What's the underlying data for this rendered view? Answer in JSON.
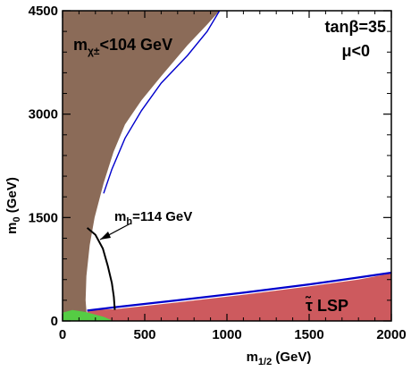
{
  "chart_data": {
    "type": "area",
    "title": "",
    "xlabel": "m1/2 (GeV)",
    "ylabel": "m0 (GeV)",
    "xlim": [
      0,
      2000
    ],
    "ylim": [
      0,
      4500
    ],
    "xticks": [
      0,
      500,
      1000,
      1500,
      2000
    ],
    "yticks": [
      0,
      1500,
      3000,
      4500
    ],
    "grid": false,
    "annotations": {
      "chargino": "m",
      "chargino_sub": "χ±",
      "chargino_tail": "<104 GeV",
      "tanbeta": "tanβ=35",
      "mu": "μ<0",
      "higgs_main": "m",
      "higgs_sub": "h",
      "higgs_tail": "=114 GeV",
      "lsp": "τ̃ LSP"
    },
    "colors": {
      "chargino_region": "#8b6b58",
      "stau_lsp_region": "#cd5a5e",
      "relic_density": "#0000cc",
      "green_region": "#55cc44",
      "higgs_contour": "#000000"
    },
    "regions": [
      {
        "name": "mchi+-<104 GeV excluded",
        "points": [
          [
            0,
            0
          ],
          [
            0,
            4500
          ],
          [
            955,
            4500
          ],
          [
            880,
            4300
          ],
          [
            760,
            4000
          ],
          [
            600,
            3550
          ],
          [
            480,
            3200
          ],
          [
            380,
            2850
          ],
          [
            310,
            2450
          ],
          [
            250,
            2000
          ],
          [
            195,
            1500
          ],
          [
            165,
            1100
          ],
          [
            145,
            650
          ],
          [
            140,
            300
          ],
          [
            150,
            0
          ]
        ]
      },
      {
        "name": "stau LSP",
        "points": [
          [
            150,
            0
          ],
          [
            150,
            160
          ],
          [
            320,
            170
          ],
          [
            700,
            270
          ],
          [
            1100,
            380
          ],
          [
            1500,
            500
          ],
          [
            1800,
            600
          ],
          [
            2000,
            690
          ],
          [
            2000,
            0
          ]
        ]
      },
      {
        "name": "green region",
        "points": [
          [
            0,
            0
          ],
          [
            0,
            120
          ],
          [
            60,
            160
          ],
          [
            140,
            130
          ],
          [
            250,
            60
          ],
          [
            310,
            0
          ]
        ]
      }
    ],
    "series": [
      {
        "name": "relic density band upper",
        "x": [
          250,
          300,
          380,
          480,
          600,
          760,
          880,
          955
        ],
        "y": [
          1850,
          2200,
          2650,
          3050,
          3450,
          3850,
          4200,
          4500
        ]
      },
      {
        "name": "relic density band lower",
        "x": [
          150,
          320,
          700,
          1100,
          1500,
          1800,
          2000
        ],
        "y": [
          150,
          200,
          300,
          410,
          530,
          630,
          700
        ]
      },
      {
        "name": "mh=114 GeV",
        "x": [
          150,
          200,
          245,
          275,
          300,
          312,
          318
        ],
        "y": [
          1350,
          1250,
          1050,
          800,
          550,
          350,
          160
        ]
      }
    ]
  }
}
